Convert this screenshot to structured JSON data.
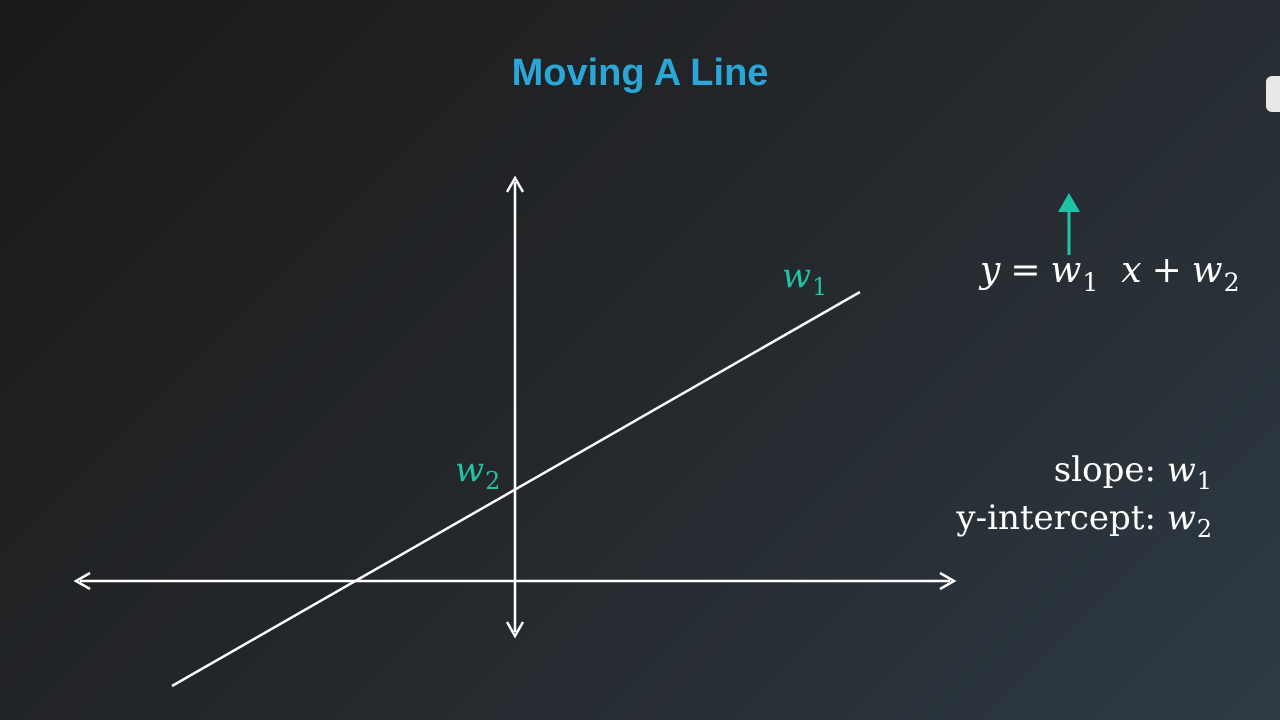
{
  "title": "Moving A Line",
  "equation": {
    "y": "y",
    "equals": "=",
    "w1_base": "w",
    "w1_sub": "1",
    "x": "x",
    "plus": "+",
    "w2_base": "w",
    "w2_sub": "2"
  },
  "labels": {
    "w1_base": "w",
    "w1_sub": "1",
    "w2_base": "w",
    "w2_sub": "2"
  },
  "legend": {
    "slope_label": "slope:",
    "slope_var_base": "w",
    "slope_var_sub": "1",
    "intercept_label": "y-intercept:",
    "intercept_var_base": "w",
    "intercept_var_sub": "2"
  },
  "colors": {
    "title": "#2aa7d8",
    "accent": "#1fc4a4",
    "lines": "#ffffff"
  },
  "icons": {
    "up_arrow": "arrow-up-icon"
  }
}
